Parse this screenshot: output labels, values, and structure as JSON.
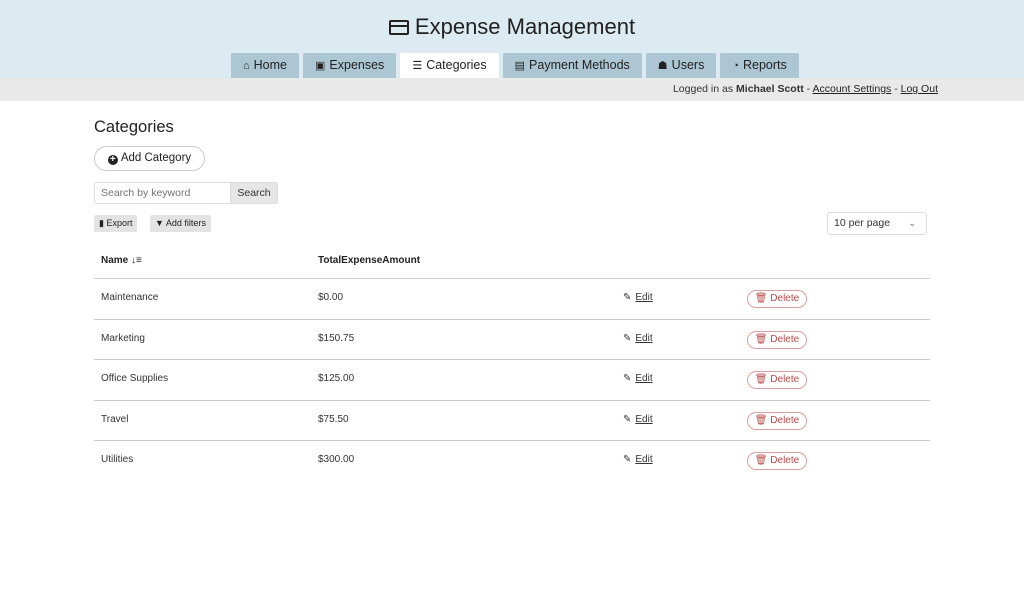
{
  "app": {
    "title": "Expense Management"
  },
  "tabs": [
    {
      "label": "Home",
      "icon": "home-icon"
    },
    {
      "label": "Expenses",
      "icon": "money-icon"
    },
    {
      "label": "Categories",
      "icon": "list-icon",
      "active": true
    },
    {
      "label": "Payment Methods",
      "icon": "credit-card-icon"
    },
    {
      "label": "Users",
      "icon": "users-icon"
    },
    {
      "label": "Reports",
      "icon": "pie-chart-icon"
    }
  ],
  "userbar": {
    "prefix": "Logged in as",
    "user": "Michael Scott",
    "sep": "-",
    "account": "Account Settings",
    "logout": "Log Out"
  },
  "page": {
    "title": "Categories",
    "add_label": "Add Category",
    "search_placeholder": "Search by keyword",
    "search_label": "Search",
    "export_label": "Export",
    "filters_label": "Add filters",
    "per_page": "10 per page"
  },
  "table": {
    "headers": {
      "name": "Name",
      "total": "TotalExpenseAmount"
    },
    "edit_label": "Edit",
    "delete_label": "Delete",
    "rows": [
      {
        "name": "Maintenance",
        "total": "$0.00"
      },
      {
        "name": "Marketing",
        "total": "$150.75"
      },
      {
        "name": "Office Supplies",
        "total": "$125.00"
      },
      {
        "name": "Travel",
        "total": "$75.50"
      },
      {
        "name": "Utilities",
        "total": "$300.00"
      }
    ]
  }
}
